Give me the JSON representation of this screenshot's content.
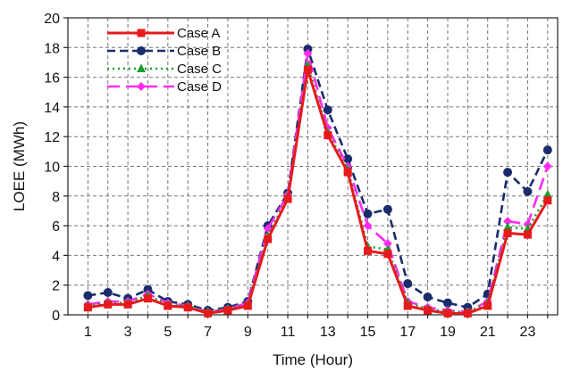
{
  "chart_data": {
    "type": "line",
    "xlabel": "Time (Hour)",
    "ylabel": "LOEE (MWh)",
    "xlim": [
      0,
      24.5
    ],
    "ylim": [
      0,
      20
    ],
    "x_ticks": [
      1,
      3,
      5,
      7,
      9,
      11,
      13,
      15,
      17,
      19,
      21,
      23
    ],
    "y_ticks": [
      0,
      2,
      4,
      6,
      8,
      10,
      12,
      14,
      16,
      18,
      20
    ],
    "grid": true,
    "legend_position": "top-left",
    "x": [
      1,
      2,
      3,
      4,
      5,
      6,
      7,
      8,
      9,
      10,
      11,
      12,
      13,
      14,
      15,
      16,
      17,
      18,
      19,
      20,
      21,
      22,
      23,
      24
    ],
    "series": [
      {
        "name": "Case A",
        "color": "#e8191c",
        "line_style": "solid",
        "marker": "square",
        "values": [
          0.5,
          0.7,
          0.7,
          1.1,
          0.6,
          0.5,
          0.1,
          0.3,
          0.6,
          5.1,
          7.8,
          16.5,
          12.1,
          9.6,
          4.3,
          4.1,
          0.6,
          0.3,
          0.1,
          0.1,
          0.6,
          5.5,
          5.4,
          7.7
        ]
      },
      {
        "name": "Case B",
        "color": "#1a2b6b",
        "line_style": "dashed",
        "marker": "circle",
        "values": [
          1.3,
          1.5,
          1.1,
          1.7,
          0.9,
          0.7,
          0.3,
          0.5,
          0.9,
          6.0,
          8.2,
          17.9,
          13.8,
          10.5,
          6.8,
          7.1,
          2.1,
          1.2,
          0.8,
          0.5,
          1.4,
          9.6,
          8.3,
          11.1
        ]
      },
      {
        "name": "Case C",
        "color": "#1a9e2c",
        "line_style": "dotted",
        "marker": "triangle",
        "values": [
          0.6,
          0.8,
          0.8,
          1.3,
          0.7,
          0.6,
          0.2,
          0.4,
          0.7,
          5.3,
          8.0,
          16.8,
          12.3,
          9.8,
          4.6,
          4.4,
          0.8,
          0.4,
          0.2,
          0.2,
          0.8,
          5.9,
          5.8,
          8.1
        ]
      },
      {
        "name": "Case D",
        "color": "#ff2bf0",
        "line_style": "long-dash",
        "marker": "diamond",
        "values": [
          0.7,
          0.9,
          0.9,
          1.4,
          0.8,
          0.6,
          0.2,
          0.4,
          0.8,
          5.8,
          8.1,
          17.6,
          12.6,
          10.0,
          6.0,
          4.8,
          0.9,
          0.5,
          0.3,
          0.2,
          0.9,
          6.3,
          6.1,
          10.0
        ]
      }
    ]
  }
}
